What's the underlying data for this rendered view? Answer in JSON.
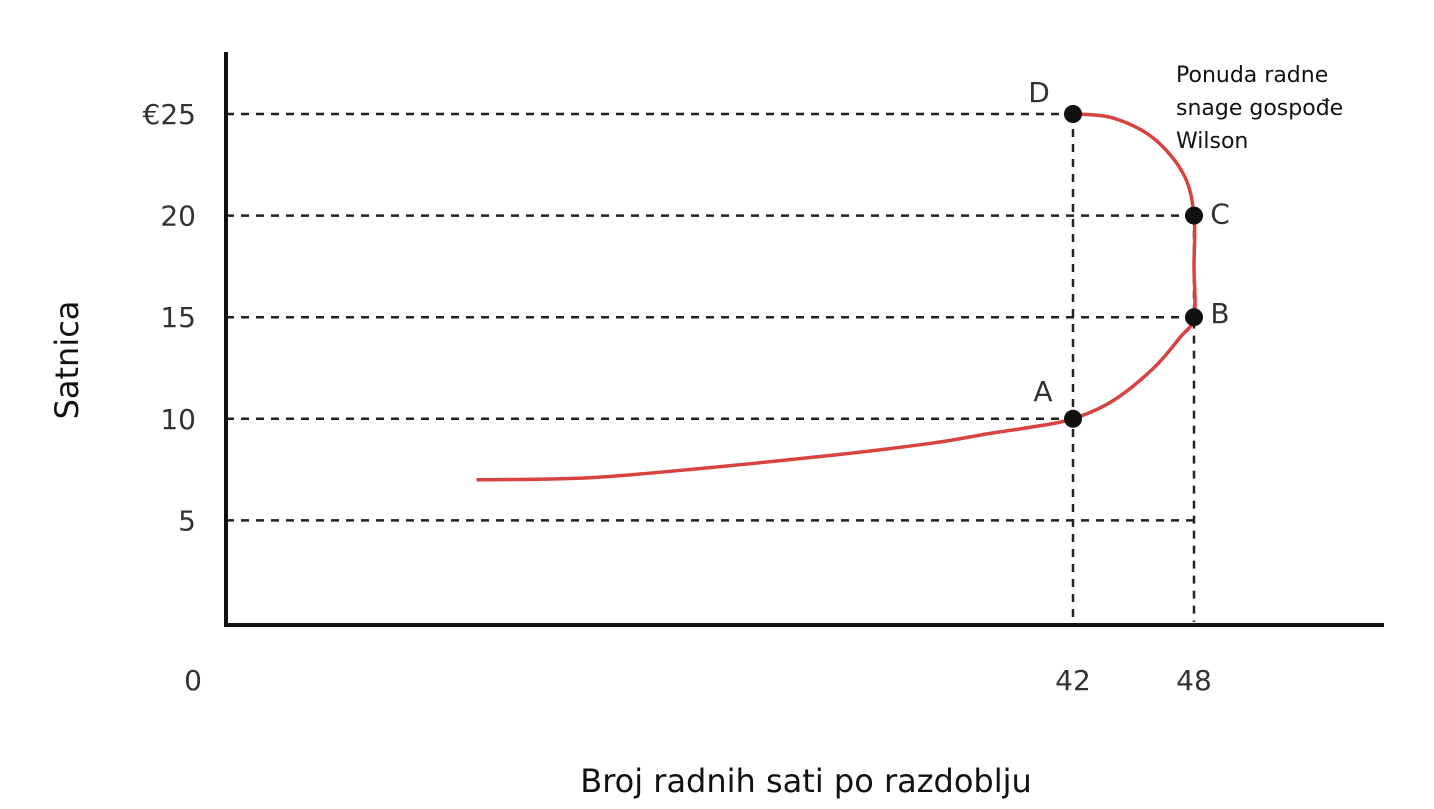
{
  "chart_data": {
    "type": "line",
    "title": "",
    "xlabel": "Broj radnih sati po razdoblju",
    "ylabel": "Satnica",
    "y_unit": "€",
    "xlim": [
      0,
      56
    ],
    "ylim": [
      0,
      28
    ],
    "x_ticks": [
      {
        "value": 0,
        "label": "0"
      },
      {
        "value": 42,
        "label": "42"
      },
      {
        "value": 48,
        "label": "48"
      }
    ],
    "y_ticks": [
      {
        "value": 5,
        "label": "5"
      },
      {
        "value": 10,
        "label": "10"
      },
      {
        "value": 15,
        "label": "15"
      },
      {
        "value": 20,
        "label": "20"
      },
      {
        "value": 25,
        "label": "€25"
      }
    ],
    "grid": "dashed guide lines at y ticks and at x = 42, 48",
    "legend_placement": "top-right",
    "series": [
      {
        "name": "Ponuda radne snage gospođe Wilson",
        "color": "#d9433f",
        "x": [
          12.5,
          18,
          24,
          30,
          35,
          38,
          40,
          42,
          44,
          46,
          47.3,
          48,
          48,
          48,
          47.5,
          46,
          44,
          42.2
        ],
        "y": [
          7.0,
          7.1,
          7.6,
          8.2,
          8.8,
          9.3,
          9.6,
          10.0,
          10.9,
          12.5,
          14.0,
          15.0,
          17.5,
          20.0,
          22.0,
          23.8,
          24.8,
          25.0
        ]
      }
    ],
    "points": [
      {
        "label": "A",
        "x": 42,
        "y": 10
      },
      {
        "label": "B",
        "x": 48,
        "y": 15
      },
      {
        "label": "C",
        "x": 48,
        "y": 20
      },
      {
        "label": "D",
        "x": 42,
        "y": 25
      }
    ],
    "legend_lines": [
      "Ponuda radne",
      "snage gospođe",
      "Wilson"
    ]
  },
  "colors": {
    "curve": "#d9433f",
    "axis": "#111111",
    "guide": "#222222",
    "point": "#111111",
    "plot_background": "#ffffff"
  }
}
